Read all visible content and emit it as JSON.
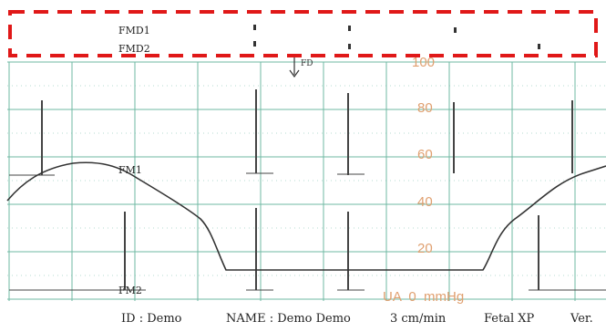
{
  "header": {
    "channel_1": "FMD1",
    "channel_2": "FMD2"
  },
  "trace_labels": {
    "fm1": "FM1",
    "fm2": "FM2",
    "marker": "FD"
  },
  "scale": {
    "ticks": [
      "100",
      "80",
      "60",
      "40",
      "20"
    ],
    "unit_line": "UA  0  mmHg"
  },
  "footer": {
    "id": "ID :  Demo",
    "name": "NAME :  Demo Demo",
    "speed": "3 cm/min",
    "mode": "Fetal XP",
    "version": "Ver."
  },
  "colors": {
    "grid": "#6fb8a3",
    "scale_text": "#e0a070",
    "highlight_box": "#e01818",
    "trace": "#333333"
  }
}
